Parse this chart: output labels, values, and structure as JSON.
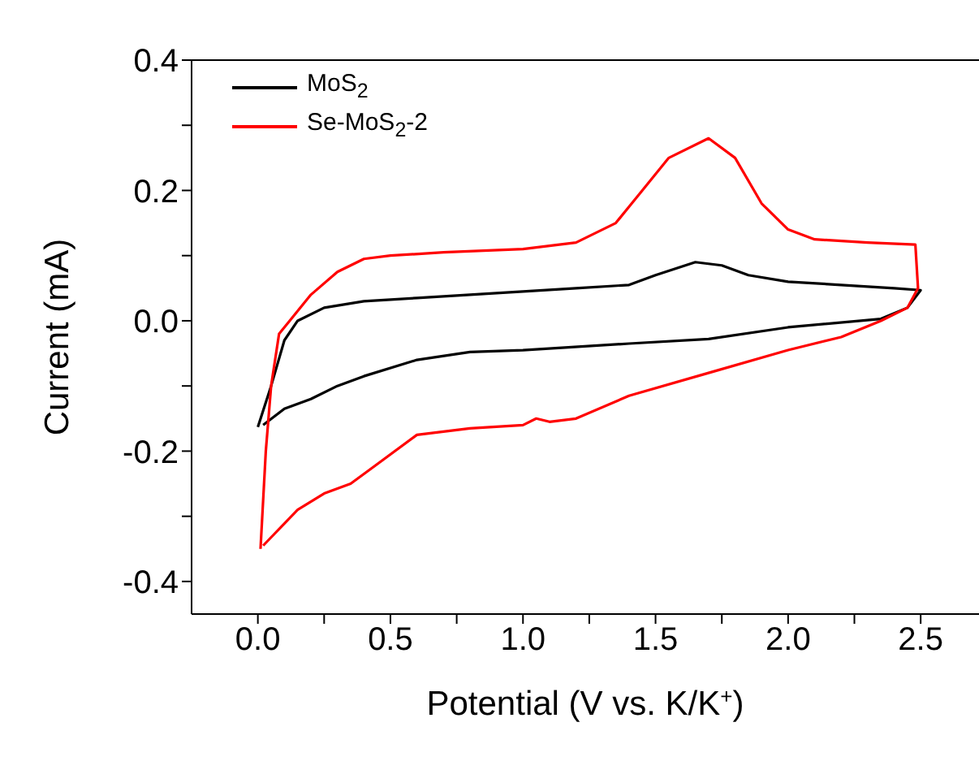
{
  "chart_data": {
    "type": "line",
    "xlabel": "Potential (V vs. K/K$^{+}$)",
    "ylabel": "Current (mA)",
    "xlim": [
      -0.25,
      2.72
    ],
    "ylim": [
      -0.45,
      0.4
    ],
    "xticks": [
      {
        "value": 0,
        "label": "0.0"
      },
      {
        "value": 0.25,
        "label": null
      },
      0.5,
      {
        "value": 0.75,
        "label": null
      },
      {
        "value": 1,
        "label": "1.0"
      },
      {
        "value": 1.25,
        "label": null
      },
      1.5,
      {
        "value": 1.75,
        "label": null
      },
      {
        "value": 2,
        "label": "2.0"
      },
      {
        "value": 2.25,
        "label": null
      },
      2.5
    ],
    "yticks": [
      -0.4,
      {
        "value": -0.3,
        "label": null
      },
      -0.2,
      {
        "value": -0.1,
        "label": null
      },
      {
        "value": 0,
        "label": "0.0"
      },
      {
        "value": 0.1,
        "label": null
      },
      0.2,
      {
        "value": 0.3,
        "label": null
      },
      0.4
    ],
    "legend": "top left",
    "grid": false,
    "marker": "none",
    "line_style": "solid",
    "series": [
      {
        "name": "MoS$_{2}$",
        "color": "#000000",
        "x": [
          0.0,
          0.05,
          0.1,
          0.15,
          0.25,
          0.4,
          0.6,
          0.8,
          1.0,
          1.2,
          1.4,
          1.5,
          1.65,
          1.75,
          1.85,
          2.0,
          2.2,
          2.4,
          2.5,
          2.45,
          2.35,
          2.0,
          1.7,
          1.4,
          1.0,
          0.8,
          0.6,
          0.4,
          0.3,
          0.2,
          0.1,
          0.02
        ],
        "values": [
          -0.163,
          -0.1,
          -0.03,
          0.0,
          0.02,
          0.03,
          0.035,
          0.04,
          0.045,
          0.05,
          0.055,
          0.07,
          0.09,
          0.085,
          0.07,
          0.06,
          0.055,
          0.05,
          0.047,
          0.02,
          0.003,
          -0.01,
          -0.028,
          -0.035,
          -0.045,
          -0.048,
          -0.06,
          -0.085,
          -0.1,
          -0.12,
          -0.135,
          -0.16
        ]
      },
      {
        "name": "Se-MoS$_{2}$-2",
        "color": "#ff0000",
        "x": [
          0.01,
          0.03,
          0.05,
          0.08,
          0.12,
          0.2,
          0.3,
          0.4,
          0.5,
          0.7,
          1.0,
          1.2,
          1.35,
          1.45,
          1.55,
          1.7,
          1.8,
          1.9,
          2.0,
          2.1,
          2.3,
          2.48,
          2.49,
          2.45,
          2.35,
          2.2,
          2.0,
          1.7,
          1.4,
          1.2,
          1.1,
          1.05,
          1.0,
          0.8,
          0.6,
          0.45,
          0.35,
          0.25,
          0.15,
          0.02
        ],
        "values": [
          -0.35,
          -0.2,
          -0.1,
          -0.02,
          0.0,
          0.04,
          0.075,
          0.095,
          0.1,
          0.105,
          0.11,
          0.12,
          0.15,
          0.2,
          0.25,
          0.28,
          0.25,
          0.18,
          0.14,
          0.125,
          0.12,
          0.117,
          0.05,
          0.02,
          0.0,
          -0.025,
          -0.045,
          -0.08,
          -0.115,
          -0.15,
          -0.155,
          -0.15,
          -0.16,
          -0.165,
          -0.175,
          -0.22,
          -0.25,
          -0.265,
          -0.29,
          -0.345
        ]
      }
    ]
  }
}
